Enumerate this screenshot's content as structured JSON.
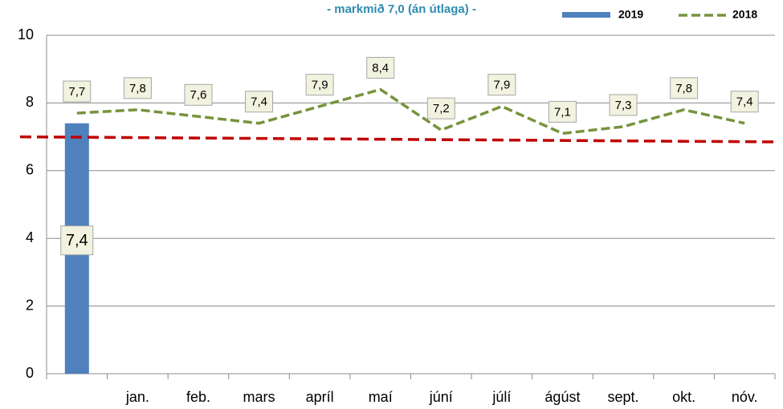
{
  "chart_data": {
    "type": "bar",
    "title": "- markmið 7,0 (án útlaga) -",
    "categories": [
      null,
      "jan.",
      "feb.",
      "mars",
      "apríl",
      "maí",
      "júní",
      "júlí",
      "ágúst",
      "sept.",
      "okt.",
      "nóv."
    ],
    "series": [
      {
        "name": "2019",
        "type": "bar",
        "color": "#4f81bd",
        "values": [
          7.4,
          null,
          null,
          null,
          null,
          null,
          null,
          null,
          null,
          null,
          null,
          null
        ],
        "value_labels": [
          "7,4",
          null,
          null,
          null,
          null,
          null,
          null,
          null,
          null,
          null,
          null,
          null
        ]
      },
      {
        "name": "2018",
        "type": "line",
        "color": "#77933c",
        "values": [
          7.7,
          7.8,
          7.6,
          7.4,
          7.9,
          8.4,
          7.2,
          7.9,
          7.1,
          7.3,
          7.8,
          7.4
        ],
        "value_labels": [
          "7,7",
          "7,8",
          "7,6",
          "7,4",
          "7,9",
          "8,4",
          "7,2",
          "7,9",
          "7,1",
          "7,3",
          "7,8",
          "7,4"
        ]
      }
    ],
    "trend": {
      "color": "#c00000",
      "values": [
        7.0,
        6.85
      ]
    },
    "ylim": [
      0,
      10
    ],
    "yticks": [
      0,
      2,
      4,
      6,
      8,
      10
    ],
    "grid": true
  }
}
